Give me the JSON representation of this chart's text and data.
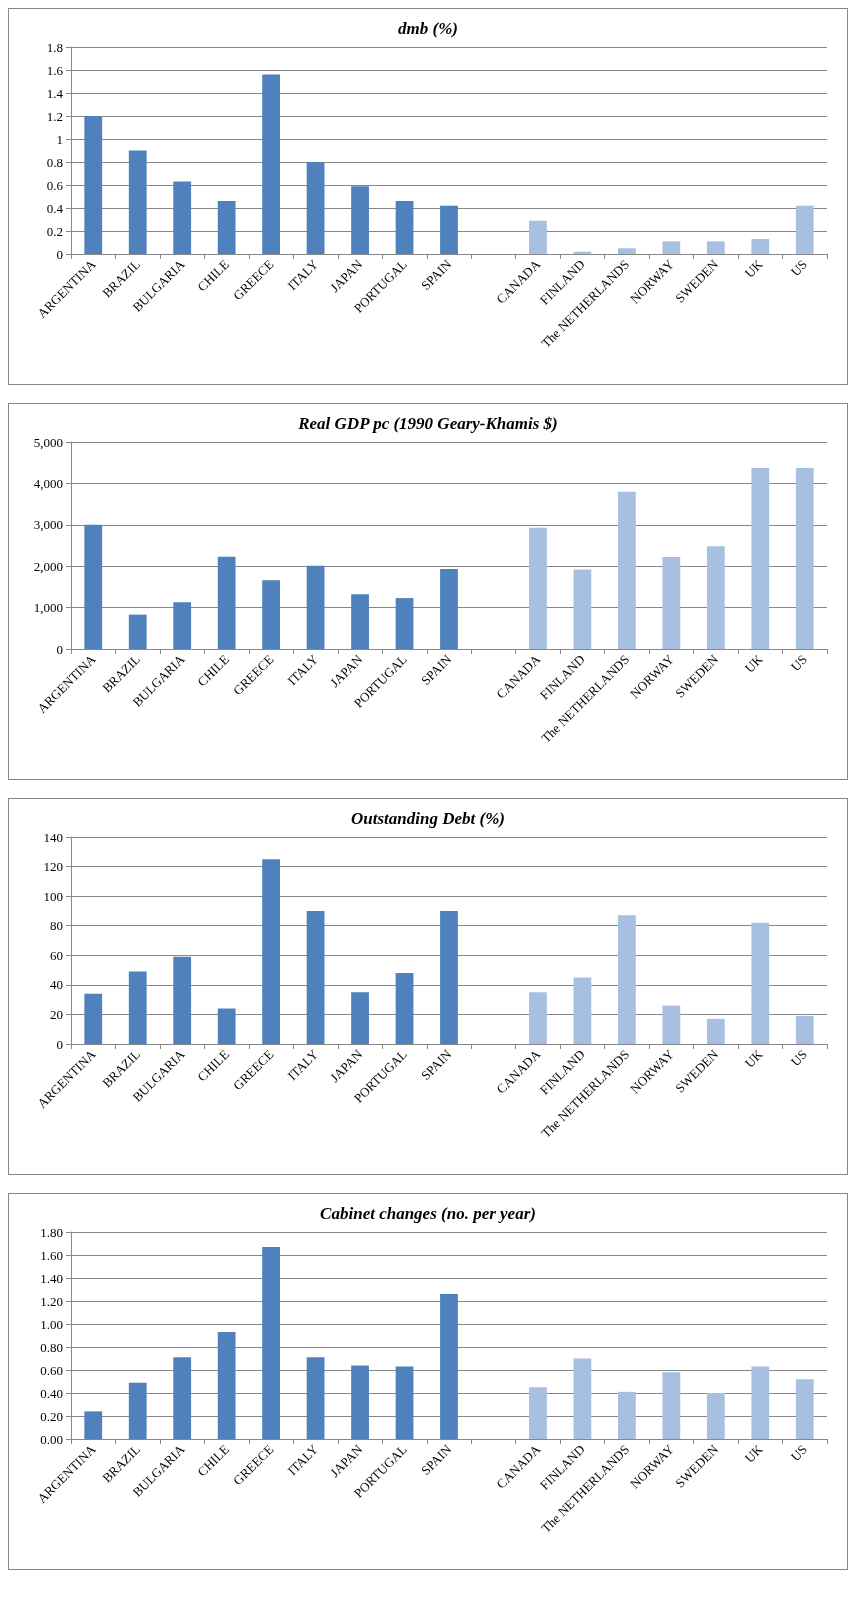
{
  "chart_data": [
    {
      "type": "bar",
      "title": "dmb (%)",
      "categories": [
        "ARGENTINA",
        "BRAZIL",
        "BULGARIA",
        "CHILE",
        "GREECE",
        "ITALY",
        "JAPAN",
        "PORTUGAL",
        "SPAIN",
        null,
        "CANADA",
        "FINLAND",
        "The NETHERLANDS",
        "NORWAY",
        "SWEDEN",
        "UK",
        "US"
      ],
      "values": [
        1.2,
        0.9,
        0.63,
        0.46,
        1.56,
        0.8,
        0.59,
        0.46,
        0.42,
        null,
        0.29,
        0.02,
        0.05,
        0.11,
        0.11,
        0.13,
        0.42
      ],
      "colors": [
        "#4f81bd",
        "#4f81bd",
        "#4f81bd",
        "#4f81bd",
        "#4f81bd",
        "#4f81bd",
        "#4f81bd",
        "#4f81bd",
        "#4f81bd",
        "#4f81bd",
        "#a7c0e2",
        "#a7c0e2",
        "#a7c0e2",
        "#a7c0e2",
        "#a7c0e2",
        "#a7c0e2",
        "#a7c0e2"
      ],
      "ylim": [
        0,
        1.8
      ],
      "yticks": [
        0,
        0.2,
        0.4,
        0.6,
        0.8,
        1,
        1.2,
        1.4,
        1.6,
        1.8
      ],
      "grid": "y"
    },
    {
      "type": "bar",
      "title": "Real GDP pc (1990 Geary-Khamis $)",
      "categories": [
        "ARGENTINA",
        "BRAZIL",
        "BULGARIA",
        "CHILE",
        "GREECE",
        "ITALY",
        "JAPAN",
        "PORTUGAL",
        "SPAIN",
        null,
        "CANADA",
        "FINLAND",
        "The NETHERLANDS",
        "NORWAY",
        "SWEDEN",
        "UK",
        "US"
      ],
      "values": [
        3000,
        830,
        1130,
        2230,
        1660,
        2010,
        1320,
        1230,
        1930,
        null,
        2930,
        1920,
        3800,
        2220,
        2480,
        4370,
        4370
      ],
      "colors": [
        "#4f81bd",
        "#4f81bd",
        "#4f81bd",
        "#4f81bd",
        "#4f81bd",
        "#4f81bd",
        "#4f81bd",
        "#4f81bd",
        "#4f81bd",
        "#4f81bd",
        "#a7c0e2",
        "#a7c0e2",
        "#a7c0e2",
        "#a7c0e2",
        "#a7c0e2",
        "#a7c0e2",
        "#a7c0e2"
      ],
      "ylim": [
        0,
        5000
      ],
      "yticks": [
        0,
        {
          "value": 1000,
          "label": "1,000"
        },
        {
          "value": 2000,
          "label": "2,000"
        },
        {
          "value": 3000,
          "label": "3,000"
        },
        {
          "value": 4000,
          "label": "4,000"
        },
        {
          "value": 5000,
          "label": "5,000"
        }
      ],
      "grid": "y"
    },
    {
      "type": "bar",
      "title": "Outstanding Debt (%)",
      "categories": [
        "ARGENTINA",
        "BRAZIL",
        "BULGARIA",
        "CHILE",
        "GREECE",
        "ITALY",
        "JAPAN",
        "PORTUGAL",
        "SPAIN",
        null,
        "CANADA",
        "FINLAND",
        "The NETHERLANDS",
        "NORWAY",
        "SWEDEN",
        "UK",
        "US"
      ],
      "values": [
        34,
        49,
        59,
        24,
        125,
        90,
        35,
        48,
        90,
        null,
        35,
        45,
        87,
        26,
        17,
        82,
        19
      ],
      "colors": [
        "#4f81bd",
        "#4f81bd",
        "#4f81bd",
        "#4f81bd",
        "#4f81bd",
        "#4f81bd",
        "#4f81bd",
        "#4f81bd",
        "#4f81bd",
        "#4f81bd",
        "#a7c0e2",
        "#a7c0e2",
        "#a7c0e2",
        "#a7c0e2",
        "#a7c0e2",
        "#a7c0e2",
        "#a7c0e2"
      ],
      "ylim": [
        0,
        140
      ],
      "yticks": [
        0,
        20,
        40,
        60,
        80,
        100,
        120,
        140
      ],
      "grid": "y"
    },
    {
      "type": "bar",
      "title": "Cabinet changes (no. per year)",
      "categories": [
        "ARGENTINA",
        "BRAZIL",
        "BULGARIA",
        "CHILE",
        "GREECE",
        "ITALY",
        "JAPAN",
        "PORTUGAL",
        "SPAIN",
        null,
        "CANADA",
        "FINLAND",
        "The NETHERLANDS",
        "NORWAY",
        "SWEDEN",
        "UK",
        "US"
      ],
      "values": [
        0.24,
        0.49,
        0.71,
        0.93,
        1.67,
        0.71,
        0.64,
        0.63,
        1.26,
        null,
        0.45,
        0.7,
        0.41,
        0.58,
        0.4,
        0.63,
        0.52
      ],
      "colors": [
        "#4f81bd",
        "#4f81bd",
        "#4f81bd",
        "#4f81bd",
        "#4f81bd",
        "#4f81bd",
        "#4f81bd",
        "#4f81bd",
        "#4f81bd",
        "#4f81bd",
        "#a7c0e2",
        "#a7c0e2",
        "#a7c0e2",
        "#a7c0e2",
        "#a7c0e2",
        "#a7c0e2",
        "#a7c0e2"
      ],
      "ylim": [
        0,
        1.8
      ],
      "yticks": [
        {
          "value": 0,
          "label": "0.00"
        },
        {
          "value": 0.2,
          "label": "0.20"
        },
        {
          "value": 0.4,
          "label": "0.40"
        },
        {
          "value": 0.6,
          "label": "0.60"
        },
        {
          "value": 0.8,
          "label": "0.80"
        },
        {
          "value": 1,
          "label": "1.00"
        },
        {
          "value": 1.2,
          "label": "1.20"
        },
        {
          "value": 1.4,
          "label": "1.40"
        },
        {
          "value": 1.6,
          "label": "1.60"
        },
        {
          "value": 1.8,
          "label": "1.80"
        }
      ],
      "grid": "y"
    }
  ]
}
